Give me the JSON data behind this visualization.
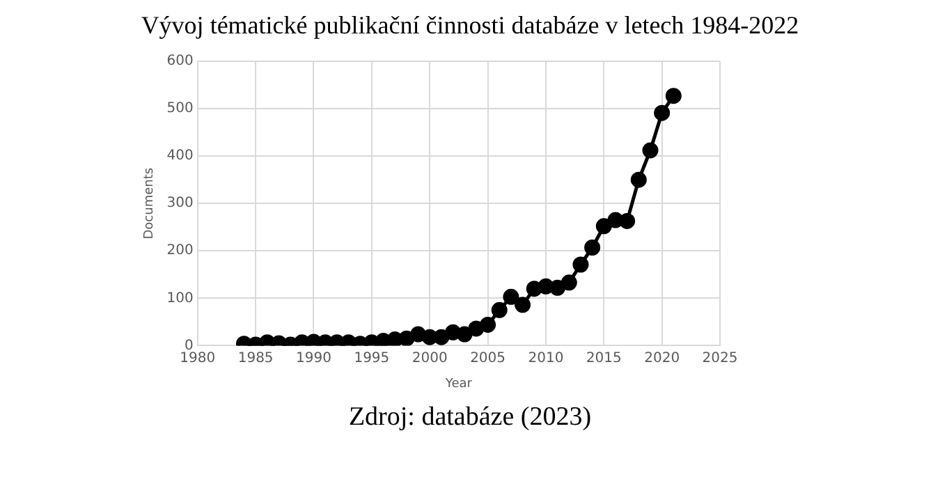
{
  "chart_data": {
    "type": "line",
    "title": "Vývoj tématické publikační činnosti databáze v letech 1984-2022",
    "xlabel": "Year",
    "ylabel": "Documents",
    "x": [
      1984,
      1985,
      1986,
      1987,
      1988,
      1989,
      1990,
      1991,
      1992,
      1993,
      1994,
      1995,
      1996,
      1997,
      1998,
      1999,
      2000,
      2001,
      2002,
      2003,
      2004,
      2005,
      2006,
      2007,
      2008,
      2009,
      2010,
      2011,
      2012,
      2013,
      2014,
      2015,
      2016,
      2017,
      2018,
      2019,
      2020,
      2021
    ],
    "series": [
      {
        "color": "#000000",
        "values": [
          4,
          2,
          7,
          5,
          2,
          7,
          8,
          7,
          7,
          7,
          4,
          7,
          10,
          13,
          15,
          24,
          18,
          18,
          28,
          24,
          36,
          44,
          75,
          103,
          86,
          120,
          125,
          122,
          133,
          171,
          207,
          252,
          265,
          263,
          350,
          412,
          491,
          527
        ]
      }
    ],
    "xlim": [
      1980,
      2025
    ],
    "xticks": [
      1980,
      1985,
      1990,
      1995,
      2000,
      2005,
      2010,
      2015,
      2020,
      2025
    ],
    "ylim": [
      0,
      600
    ],
    "yticks": [
      0,
      100,
      200,
      300,
      400,
      500,
      600
    ],
    "grid": true,
    "legend": false,
    "marker": "circle",
    "line_style": "solid",
    "annotations": [
      "Zdroj: databáze (2023)"
    ]
  }
}
